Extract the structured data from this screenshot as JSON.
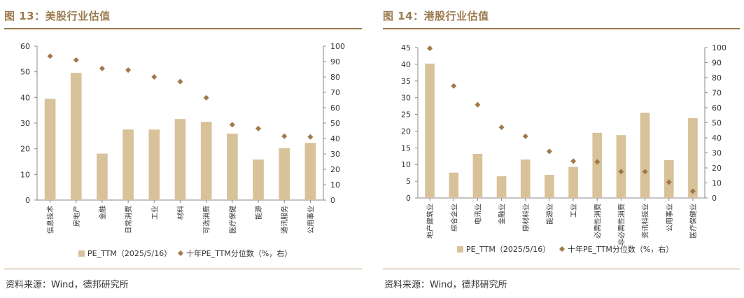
{
  "colors": {
    "bar": "#d8c29a",
    "point": "#a0784b",
    "axis": "#888888",
    "title": "#9c7b4f"
  },
  "left": {
    "title": "图 13：美股行业估值",
    "source": "资料来源：Wind，德邦研究所",
    "legend": {
      "bar": "PE_TTM（2025/5/16）",
      "point": "十年PE_TTM分位数（%，右）"
    },
    "chart_data": {
      "type": "bar",
      "categories": [
        "信息技术",
        "房地产",
        "金融",
        "日常消费",
        "工业",
        "材料",
        "可选消费",
        "医疗保健",
        "能源",
        "通讯服务",
        "公用事业"
      ],
      "series": [
        {
          "name": "PE_TTM（2025/5/16）",
          "type": "bar",
          "axis": "left",
          "values": [
            39.5,
            49.6,
            18.1,
            27.5,
            27.5,
            31.6,
            30.5,
            25.9,
            15.8,
            20.2,
            22.3
          ]
        },
        {
          "name": "十年PE_TTM分位数（%，右）",
          "type": "scatter",
          "axis": "right",
          "values": [
            93.5,
            91,
            85.5,
            84.5,
            80,
            77,
            66.5,
            49,
            46.5,
            41.5,
            41
          ]
        }
      ],
      "ylim": [
        0,
        60
      ],
      "yticks": [
        0,
        10,
        20,
        30,
        40,
        50,
        60
      ],
      "y2lim": [
        0,
        100
      ],
      "y2ticks": [
        0,
        10,
        20,
        30,
        40,
        50,
        60,
        70,
        80,
        90,
        100
      ],
      "legend_position": "bottom"
    }
  },
  "right": {
    "title": "图 14：港股行业估值",
    "source": "资料来源：Wind，德邦研究所",
    "legend": {
      "bar": "PE_TTM（2025/5/16）",
      "point": "十年PE_TTM分位数（%，右）"
    },
    "chart_data": {
      "type": "bar",
      "categories": [
        "地产建筑业",
        "综合企业",
        "电讯业",
        "金融业",
        "原材料业",
        "能源业",
        "工业",
        "必需性消费",
        "非必需性消费",
        "资讯科技业",
        "公用事业",
        "医疗保健业"
      ],
      "series": [
        {
          "name": "PE_TTM（2025/5/16）",
          "type": "bar",
          "axis": "left",
          "values": [
            40.2,
            7.6,
            13.2,
            6.5,
            11.5,
            6.9,
            9.3,
            19.5,
            18.8,
            25.5,
            11.3,
            23.9
          ]
        },
        {
          "name": "十年PE_TTM分位数（%，右）",
          "type": "scatter",
          "axis": "right",
          "values": [
            99.5,
            74.5,
            62,
            47,
            41,
            31,
            24.5,
            24,
            17.5,
            17.5,
            10.5,
            4.5
          ]
        }
      ],
      "ylim": [
        0,
        45
      ],
      "yticks": [
        0,
        5,
        10,
        15,
        20,
        25,
        30,
        35,
        40,
        45
      ],
      "y2lim": [
        0,
        100
      ],
      "y2ticks": [
        0,
        10,
        20,
        30,
        40,
        50,
        60,
        70,
        80,
        90,
        100
      ],
      "legend_position": "bottom"
    }
  }
}
